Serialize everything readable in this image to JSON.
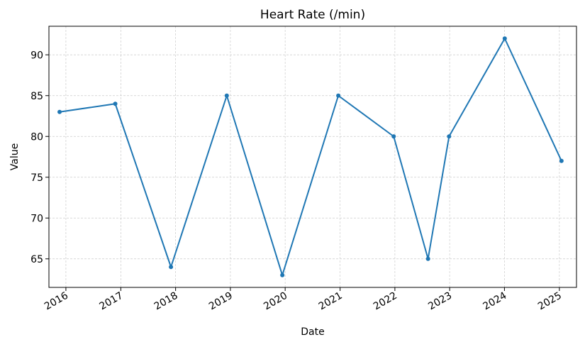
{
  "chart_data": {
    "type": "line",
    "title": "Heart Rate (/min)",
    "xlabel": "Date",
    "ylabel": "Value",
    "x_ticks": [
      "2016",
      "2017",
      "2018",
      "2019",
      "2020",
      "2021",
      "2022",
      "2023",
      "2024",
      "2025"
    ],
    "y_ticks": [
      65,
      70,
      75,
      80,
      85,
      90
    ],
    "xlim": [
      "2015-09-10",
      "2025-04-25"
    ],
    "ylim": [
      61.5,
      93.5
    ],
    "grid": true,
    "series": [
      {
        "color": "#1f77b4",
        "points": [
          {
            "x": "2015-11-20",
            "y": 83
          },
          {
            "x": "2016-11-25",
            "y": 84
          },
          {
            "x": "2017-12-01",
            "y": 64
          },
          {
            "x": "2018-12-08",
            "y": 85
          },
          {
            "x": "2019-12-13",
            "y": 63
          },
          {
            "x": "2020-12-20",
            "y": 85
          },
          {
            "x": "2021-12-24",
            "y": 80
          },
          {
            "x": "2022-08-10",
            "y": 65
          },
          {
            "x": "2022-12-28",
            "y": 80
          },
          {
            "x": "2024-01-03",
            "y": 92
          },
          {
            "x": "2025-01-15",
            "y": 77
          }
        ]
      }
    ]
  }
}
